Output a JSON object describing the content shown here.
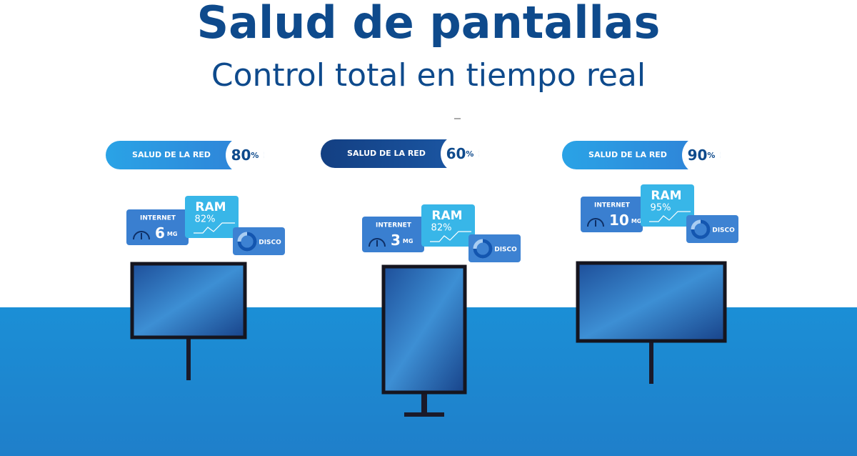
{
  "header": {
    "title": "Salud de pantallas",
    "subtitle": "Control total en tiempo real"
  },
  "panels": [
    {
      "health": {
        "label": "SALUD DE LA RED",
        "value": 80,
        "unit": "%"
      },
      "internet": {
        "label": "INTERNET",
        "value": 6,
        "unit": "MG"
      },
      "ram": {
        "label": "RAM",
        "value": "82%"
      },
      "disk": {
        "label": "DISCO"
      }
    },
    {
      "health": {
        "label": "SALUD DE LA RED",
        "value": 60,
        "unit": "%"
      },
      "internet": {
        "label": "INTERNET",
        "value": 3,
        "unit": "MG"
      },
      "ram": {
        "label": "RAM",
        "value": "82%"
      },
      "disk": {
        "label": "DISCO"
      }
    },
    {
      "health": {
        "label": "SALUD DE LA RED",
        "value": 90,
        "unit": "%"
      },
      "internet": {
        "label": "INTERNET",
        "value": 10,
        "unit": "MG"
      },
      "ram": {
        "label": "RAM",
        "value": "95%"
      },
      "disk": {
        "label": "DISCO"
      }
    }
  ]
}
